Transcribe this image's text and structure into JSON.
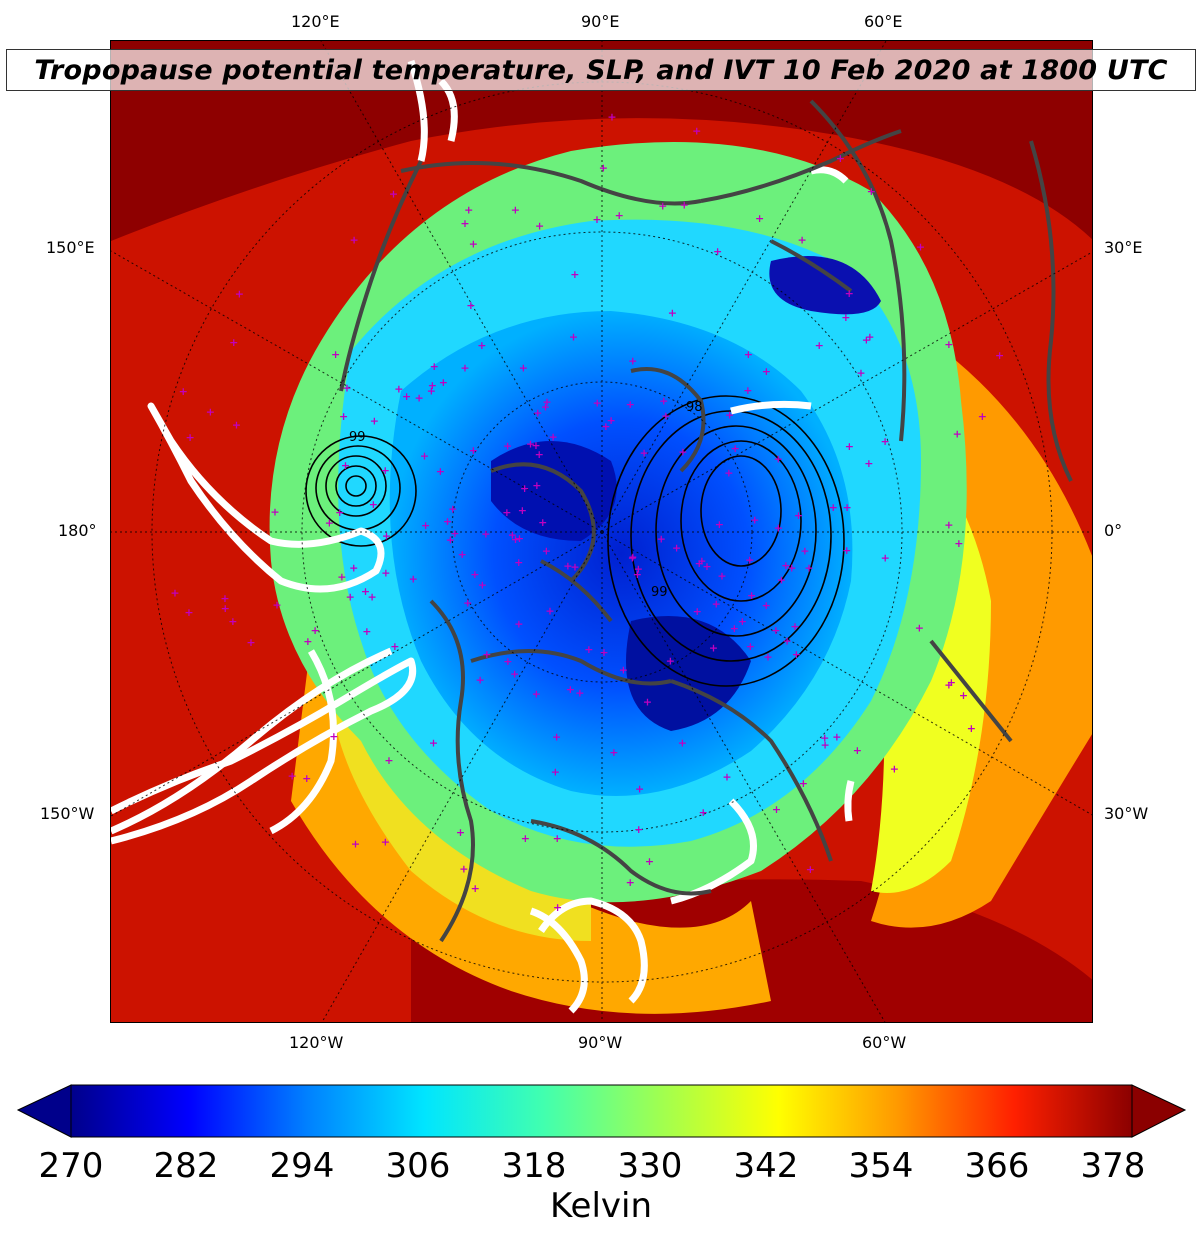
{
  "title": "Tropopause potential temperature, SLP, and IVT 10 Feb 2020 at 1800 UTC",
  "longitude_labels": {
    "top": [
      "120°E",
      "90°E",
      "60°E"
    ],
    "bottom": [
      "120°W",
      "90°W",
      "60°W"
    ],
    "left": [
      "150°E",
      "180°",
      "150°W"
    ],
    "right": [
      "30°E",
      "0°",
      "30°W"
    ]
  },
  "colorbar": {
    "ticks": [
      "270",
      "282",
      "294",
      "306",
      "318",
      "330",
      "342",
      "354",
      "366",
      "378"
    ],
    "unit": "Kelvin",
    "range": [
      270,
      378
    ],
    "extend": "both",
    "colormap": "jet",
    "colors": [
      "#00008b",
      "#0000ff",
      "#0080ff",
      "#00e5ff",
      "#40ffb0",
      "#a0ff50",
      "#ffff00",
      "#ff9a00",
      "#ff2000",
      "#8b0000"
    ]
  },
  "map": {
    "projection": "north-polar-stereographic",
    "overlays": {
      "slp_contours": "#000000",
      "ivt_contours": "#ffffff",
      "coastlines": "#444444",
      "station_markers": "#c000c0"
    },
    "slp_labels": [
      "99",
      "98",
      "99"
    ]
  }
}
